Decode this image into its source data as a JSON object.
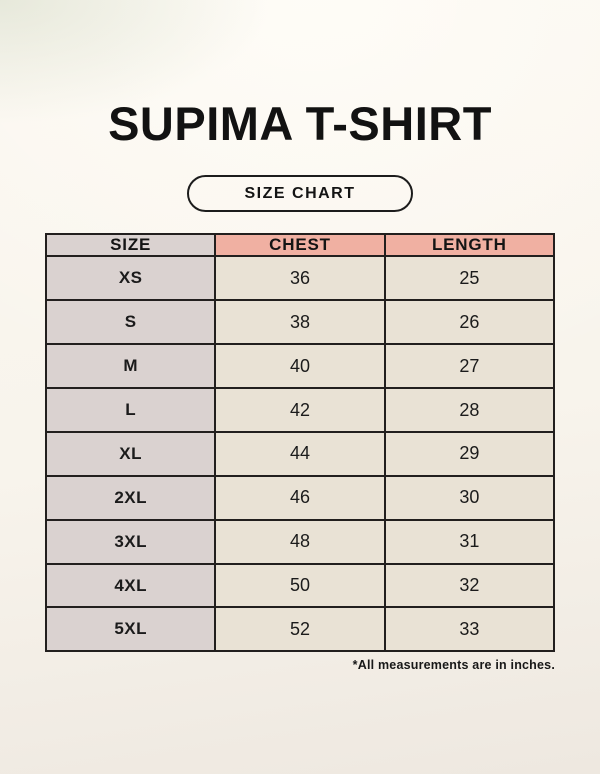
{
  "page": {
    "title": "SUPIMA T-SHIRT",
    "badge_label": "SIZE CHART",
    "footnote": "*All measurements are in inches."
  },
  "colors": {
    "page_background_top": "#fbf7f0",
    "page_background_bottom": "#eee8e0",
    "header_accent_salmon": "#f0b0a2",
    "size_column_gray": "#dad2d0",
    "data_cell_cream": "#e9e2d5",
    "table_border": "#221f1e",
    "text": "#141414"
  },
  "chart_data": {
    "type": "table",
    "title": "SUPIMA T-SHIRT",
    "columns": [
      "SIZE",
      "CHEST",
      "LENGTH"
    ],
    "rows": [
      {
        "size": "XS",
        "chest": 36,
        "length": 25
      },
      {
        "size": "S",
        "chest": 38,
        "length": 26
      },
      {
        "size": "M",
        "chest": 40,
        "length": 27
      },
      {
        "size": "L",
        "chest": 42,
        "length": 28
      },
      {
        "size": "XL",
        "chest": 44,
        "length": 29
      },
      {
        "size": "2XL",
        "chest": 46,
        "length": 30
      },
      {
        "size": "3XL",
        "chest": 48,
        "length": 31
      },
      {
        "size": "4XL",
        "chest": 50,
        "length": 32
      },
      {
        "size": "5XL",
        "chest": 52,
        "length": 33
      }
    ]
  }
}
